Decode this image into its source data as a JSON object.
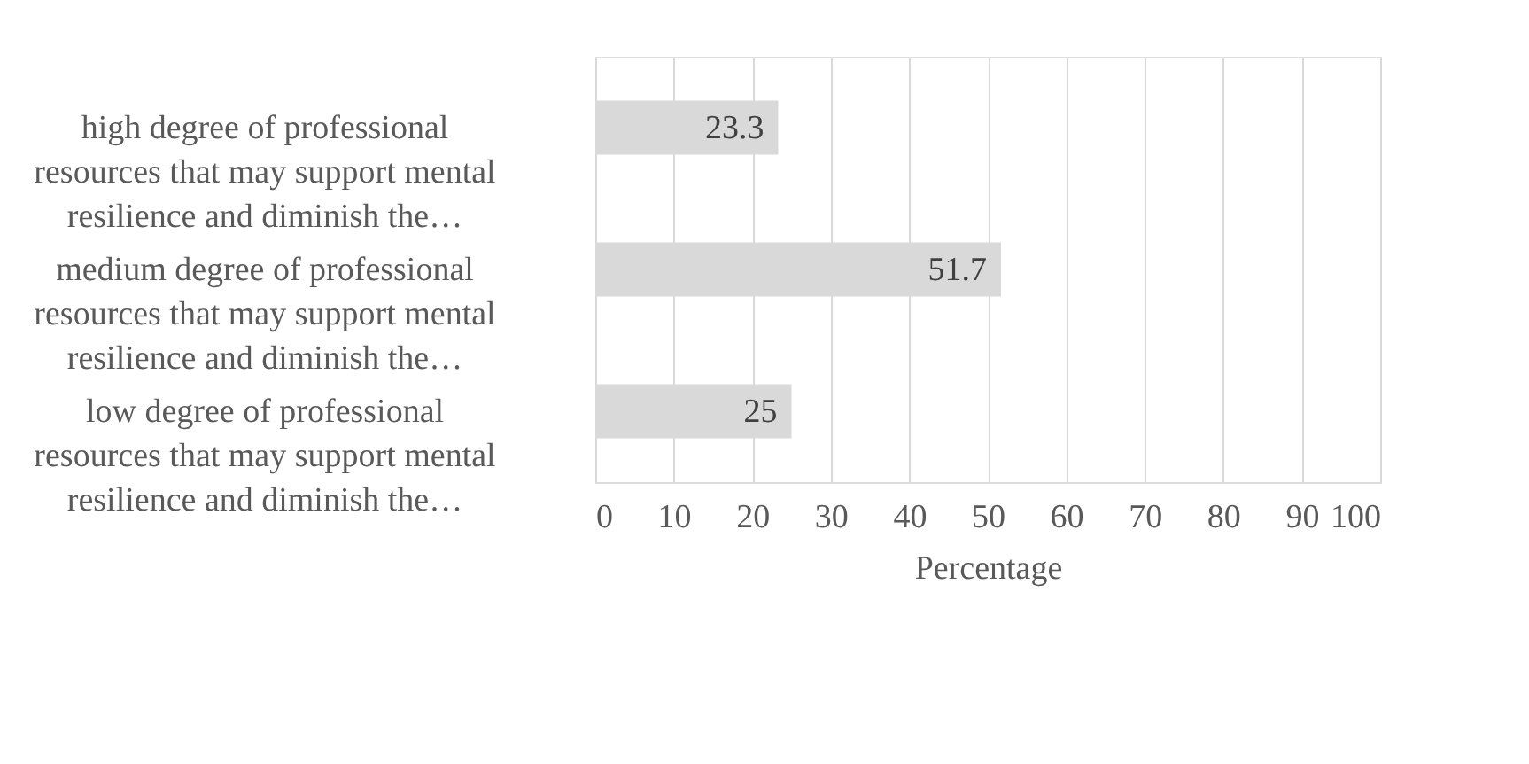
{
  "chart_data": {
    "type": "bar",
    "orientation": "horizontal",
    "xlabel": "Percentage",
    "categories": [
      "high degree of professional resources that may support mental resilience and diminish the…",
      "medium degree of professional resources that may support mental resilience and diminish the…",
      "low degree of professional resources that may support mental resilience and diminish the…"
    ],
    "values": [
      23.3,
      51.7,
      25
    ],
    "color": "#d9d9d9",
    "xlim": [
      0,
      100
    ],
    "xticks": [
      0,
      10,
      20,
      30,
      40,
      50,
      60,
      70,
      80,
      90,
      100
    ],
    "grid": "x",
    "data_labels": true
  }
}
